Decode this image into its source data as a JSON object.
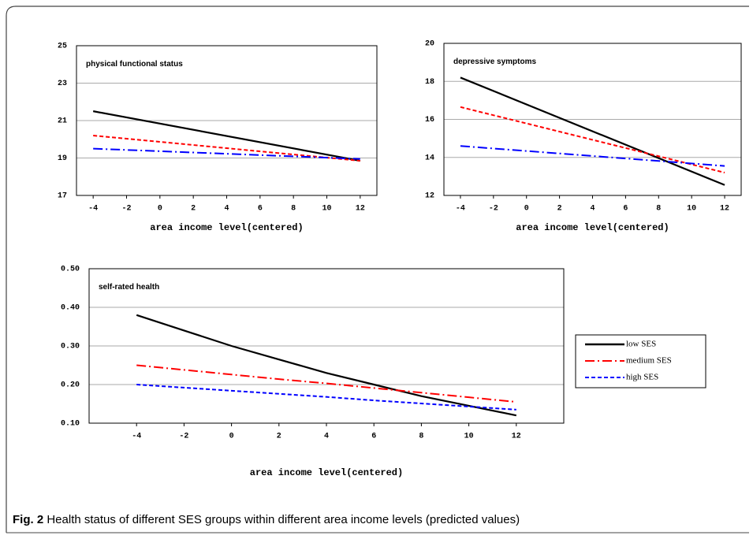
{
  "chart_data": [
    {
      "type": "line",
      "title": "physical functional status",
      "xlabel": "area income level(centered)",
      "x": [
        -4,
        12
      ],
      "xlim": [
        -5,
        13
      ],
      "xticks": [
        -4,
        -2,
        0,
        2,
        4,
        6,
        8,
        10,
        12
      ],
      "ylim": [
        17,
        25
      ],
      "yticks": [
        17,
        19,
        21,
        23,
        25
      ],
      "grid": true,
      "series": [
        {
          "color": "#000000",
          "style": "solid",
          "values": [
            21.5,
            18.85
          ]
        },
        {
          "color": "#ff0000",
          "style": "dashed",
          "values": [
            20.2,
            18.85
          ]
        },
        {
          "color": "#0000ff",
          "style": "dashdot",
          "values": [
            19.5,
            18.95
          ]
        }
      ]
    },
    {
      "type": "line",
      "title": "depressive symptoms",
      "xlabel": "area income level(centered)",
      "x": [
        -4,
        12
      ],
      "xlim": [
        -5,
        13
      ],
      "xticks": [
        -4,
        -2,
        0,
        2,
        4,
        6,
        8,
        10,
        12
      ],
      "ylim": [
        12,
        20
      ],
      "yticks": [
        12,
        14,
        16,
        18,
        20
      ],
      "grid": true,
      "series": [
        {
          "color": "#000000",
          "style": "solid",
          "values": [
            18.2,
            12.55
          ]
        },
        {
          "color": "#ff0000",
          "style": "dashed",
          "values": [
            16.65,
            13.2
          ]
        },
        {
          "color": "#0000ff",
          "style": "dashdot",
          "values": [
            14.6,
            13.55
          ]
        }
      ]
    },
    {
      "type": "line",
      "title": "self-rated health",
      "xlabel": "area income level(centered)",
      "x": [
        -4,
        -2,
        0,
        2,
        4,
        6,
        8,
        10,
        12
      ],
      "xlim": [
        -6,
        14
      ],
      "xticks": [
        -4,
        -2,
        0,
        2,
        4,
        6,
        8,
        10,
        12
      ],
      "ylim": [
        0.1,
        0.5
      ],
      "yticks": [
        {
          "value": 0.1,
          "label": "0.10"
        },
        {
          "value": 0.2,
          "label": "0.20"
        },
        {
          "value": 0.3,
          "label": "0.30"
        },
        {
          "value": 0.4,
          "label": "0.40"
        },
        {
          "value": 0.5,
          "label": "0.50"
        }
      ],
      "grid": true,
      "legend": "right",
      "series": [
        {
          "name": "low SES",
          "color": "#000000",
          "style": "solid",
          "values": [
            0.38,
            0.34,
            0.3,
            0.265,
            0.23,
            0.2,
            0.17,
            0.145,
            0.12
          ]
        },
        {
          "name": "medium SES",
          "color": "#ff0000",
          "style": "dashdot",
          "values": [
            0.25,
            0.238,
            0.226,
            0.214,
            0.203,
            0.191,
            0.179,
            0.167,
            0.155
          ]
        },
        {
          "name": "high SES",
          "color": "#0000ff",
          "style": "dashed",
          "values": [
            0.2,
            0.192,
            0.184,
            0.176,
            0.168,
            0.159,
            0.151,
            0.143,
            0.135
          ]
        }
      ]
    }
  ],
  "caption": {
    "label": "Fig. 2",
    "text": "Health status of different SES groups within different area income levels (predicted values)"
  }
}
